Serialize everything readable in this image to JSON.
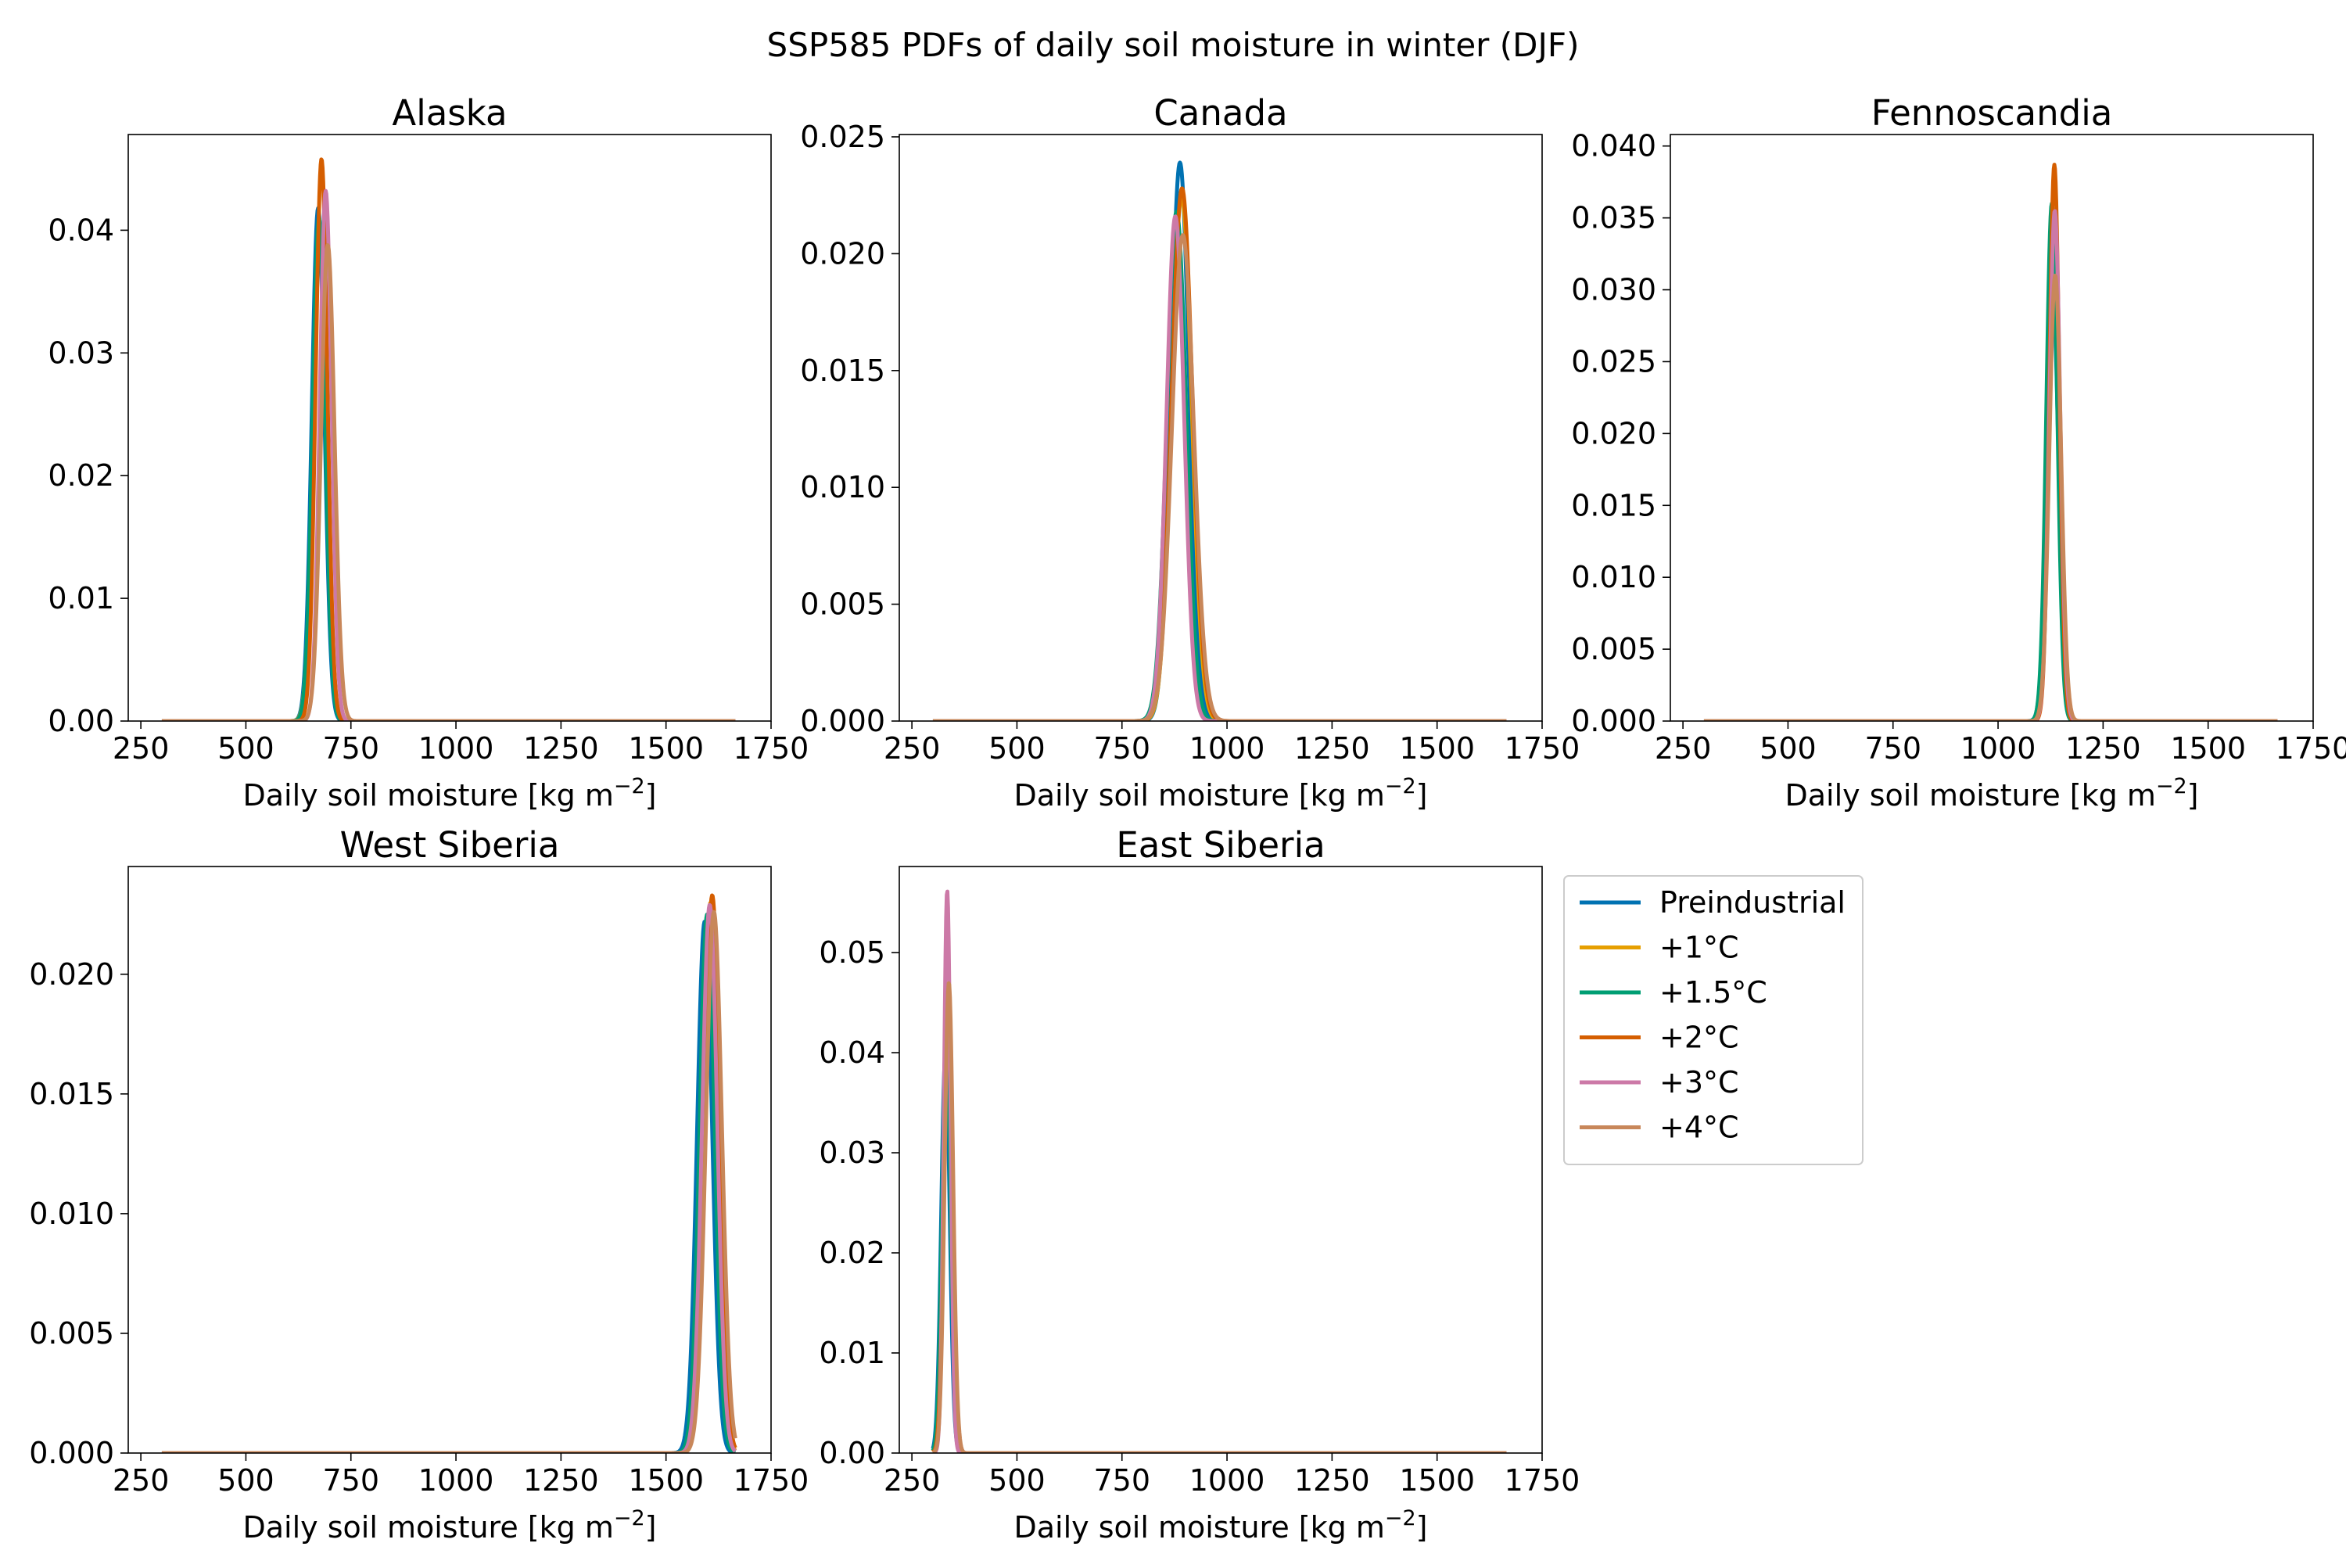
{
  "figure": {
    "title": "SSP585 PDFs of daily soil moisture in winter (DJF)"
  },
  "series_styles": [
    {
      "name": "Preindustrial",
      "color": "#0072B2"
    },
    {
      "name": "+1°C",
      "color": "#E69F00"
    },
    {
      "name": "+1.5°C",
      "color": "#009E73"
    },
    {
      "name": "+2°C",
      "color": "#D55E00"
    },
    {
      "name": "+3°C",
      "color": "#CC79A7"
    },
    {
      "name": "+4°C",
      "color": "#C8875A"
    }
  ],
  "chart_data": [
    {
      "type": "line",
      "title": "Alaska",
      "xlabel": "Daily soil moisture [kg m",
      "xlabel_superscript": "−2",
      "xlabel_close": "]",
      "ylabel": "",
      "xlim": [
        220,
        1750
      ],
      "ylim": [
        0,
        0.0478
      ],
      "xticks": [
        250,
        500,
        750,
        1000,
        1250,
        1500,
        1750
      ],
      "xtick_labels": [
        "250",
        "500",
        "750",
        "1000",
        "1250",
        "1500",
        "1750"
      ],
      "yticks": [
        0,
        0.01,
        0.02,
        0.03,
        0.04
      ],
      "ytick_labels": [
        "0.00",
        "0.01",
        "0.02",
        "0.03",
        "0.04"
      ],
      "x_range": [
        300,
        1665
      ],
      "series": [
        {
          "name": "Preindustrial",
          "peaks": [
            [
              672,
              0.0418
            ]
          ],
          "width": 15
        },
        {
          "name": "+1°C",
          "peaks": [
            [
              676,
              0.04
            ]
          ],
          "width": 16
        },
        {
          "name": "+1.5°C",
          "peaks": [
            [
              674,
              0.041
            ]
          ],
          "width": 15
        },
        {
          "name": "+2°C",
          "peaks": [
            [
              680,
              0.0458
            ]
          ],
          "width": 14
        },
        {
          "name": "+3°C",
          "peaks": [
            [
              690,
              0.0432
            ]
          ],
          "width": 14
        },
        {
          "name": "+4°C",
          "peaks": [
            [
              695,
              0.0388
            ]
          ],
          "width": 16
        }
      ],
      "legend": null
    },
    {
      "type": "line",
      "title": "Canada",
      "xlabel": "Daily soil moisture [kg m",
      "xlabel_superscript": "−2",
      "xlabel_close": "]",
      "ylabel": "",
      "xlim": [
        220,
        1750
      ],
      "ylim": [
        0,
        0.0251
      ],
      "xticks": [
        250,
        500,
        750,
        1000,
        1250,
        1500,
        1750
      ],
      "xtick_labels": [
        "250",
        "500",
        "750",
        "1000",
        "1250",
        "1500",
        "1750"
      ],
      "yticks": [
        0,
        0.005,
        0.01,
        0.015,
        0.02,
        0.025
      ],
      "ytick_labels": [
        "0.000",
        "0.005",
        "0.010",
        "0.015",
        "0.020",
        "0.025"
      ],
      "x_range": [
        300,
        1665
      ],
      "series": [
        {
          "name": "Preindustrial",
          "peaks": [
            [
              888,
              0.0239
            ]
          ],
          "width": 22
        },
        {
          "name": "+1°C",
          "peaks": [
            [
              892,
              0.0225
            ]
          ],
          "width": 24
        },
        {
          "name": "+1.5°C",
          "peaks": [
            [
              880,
              0.0218
            ]
          ],
          "width": 23
        },
        {
          "name": "+2°C",
          "peaks": [
            [
              893,
              0.0228
            ]
          ],
          "width": 25
        },
        {
          "name": "+3°C",
          "peaks": [
            [
              877,
              0.0216
            ]
          ],
          "width": 21
        },
        {
          "name": "+4°C",
          "peaks": [
            [
              895,
              0.0208
            ]
          ],
          "width": 26
        }
      ],
      "legend": null
    },
    {
      "type": "line",
      "title": "Fennoscandia",
      "xlabel": "Daily soil moisture [kg m",
      "xlabel_superscript": "−2",
      "xlabel_close": "]",
      "ylabel": "",
      "xlim": [
        220,
        1750
      ],
      "ylim": [
        0,
        0.0408
      ],
      "xticks": [
        250,
        500,
        750,
        1000,
        1250,
        1500,
        1750
      ],
      "xtick_labels": [
        "250",
        "500",
        "750",
        "1000",
        "1250",
        "1500",
        "1750"
      ],
      "yticks": [
        0,
        0.005,
        0.01,
        0.015,
        0.02,
        0.025,
        0.03,
        0.035,
        0.04
      ],
      "ytick_labels": [
        "0.000",
        "0.005",
        "0.010",
        "0.015",
        "0.020",
        "0.025",
        "0.030",
        "0.035",
        "0.040"
      ],
      "x_range": [
        300,
        1665
      ],
      "series": [
        {
          "name": "Preindustrial",
          "peaks": [
            [
              1130,
              0.03
            ]
          ],
          "width": 14
        },
        {
          "name": "+1°C",
          "peaks": [
            [
              1132,
              0.035
            ]
          ],
          "width": 13
        },
        {
          "name": "+1.5°C",
          "peaks": [
            [
              1128,
              0.036
            ]
          ],
          "width": 13
        },
        {
          "name": "+2°C",
          "peaks": [
            [
              1134,
              0.0387
            ]
          ],
          "width": 12
        },
        {
          "name": "+3°C",
          "peaks": [
            [
              1135,
              0.0355
            ]
          ],
          "width": 13
        },
        {
          "name": "+4°C",
          "peaks": [
            [
              1136,
              0.031
            ]
          ],
          "width": 14
        }
      ],
      "legend": null
    },
    {
      "type": "line",
      "title": "West Siberia",
      "xlabel": "Daily soil moisture [kg m",
      "xlabel_superscript": "−2",
      "xlabel_close": "]",
      "ylabel": "",
      "xlim": [
        220,
        1750
      ],
      "ylim": [
        0,
        0.0245
      ],
      "xticks": [
        250,
        500,
        750,
        1000,
        1250,
        1500,
        1750
      ],
      "xtick_labels": [
        "250",
        "500",
        "750",
        "1000",
        "1250",
        "1500",
        "1750"
      ],
      "yticks": [
        0,
        0.005,
        0.01,
        0.015,
        0.02
      ],
      "ytick_labels": [
        "0.000",
        "0.005",
        "0.010",
        "0.015",
        "0.020"
      ],
      "x_range": [
        300,
        1665
      ],
      "series": [
        {
          "name": "Preindustrial",
          "peaks": [
            [
              1592,
              0.0222
            ]
          ],
          "width": 18
        },
        {
          "name": "+1°C",
          "peaks": [
            [
              1606,
              0.023
            ]
          ],
          "width": 18
        },
        {
          "name": "+1.5°C",
          "peaks": [
            [
              1598,
              0.0225
            ]
          ],
          "width": 18
        },
        {
          "name": "+2°C",
          "peaks": [
            [
              1610,
              0.0233
            ]
          ],
          "width": 18
        },
        {
          "name": "+3°C",
          "peaks": [
            [
              1604,
              0.0229
            ]
          ],
          "width": 18
        },
        {
          "name": "+4°C",
          "peaks": [
            [
              1614,
              0.0226
            ]
          ],
          "width": 19
        }
      ],
      "legend": null
    },
    {
      "type": "line",
      "title": "East Siberia",
      "xlabel": "Daily soil moisture [kg m",
      "xlabel_superscript": "−2",
      "xlabel_close": "]",
      "ylabel": "",
      "xlim": [
        220,
        1750
      ],
      "ylim": [
        0,
        0.0586
      ],
      "xticks": [
        250,
        500,
        750,
        1000,
        1250,
        1500,
        1750
      ],
      "xtick_labels": [
        "250",
        "500",
        "750",
        "1000",
        "1250",
        "1500",
        "1750"
      ],
      "yticks": [
        0,
        0.01,
        0.02,
        0.03,
        0.04,
        0.05
      ],
      "ytick_labels": [
        "0.00",
        "0.01",
        "0.02",
        "0.03",
        "0.04",
        "0.05"
      ],
      "x_range": [
        300,
        1665
      ],
      "series": [
        {
          "name": "Preindustrial",
          "peaks": [
            [
              330,
              0.04
            ]
          ],
          "width": 10
        },
        {
          "name": "+1°C",
          "peaks": [
            [
              334,
              0.044
            ]
          ],
          "width": 10
        },
        {
          "name": "+1.5°C",
          "peaks": [
            [
              332,
              0.042
            ]
          ],
          "width": 10
        },
        {
          "name": "+2°C",
          "peaks": [
            [
              336,
              0.046
            ]
          ],
          "width": 10
        },
        {
          "name": "+3°C",
          "peaks": [
            [
              334,
              0.0562
            ]
          ],
          "width": 8
        },
        {
          "name": "+4°C",
          "peaks": [
            [
              338,
              0.047
            ]
          ],
          "width": 10
        }
      ],
      "legend": {
        "placement": "right-outside",
        "entries": [
          "Preindustrial",
          "+1°C",
          "+1.5°C",
          "+2°C",
          "+3°C",
          "+4°C"
        ]
      }
    }
  ]
}
